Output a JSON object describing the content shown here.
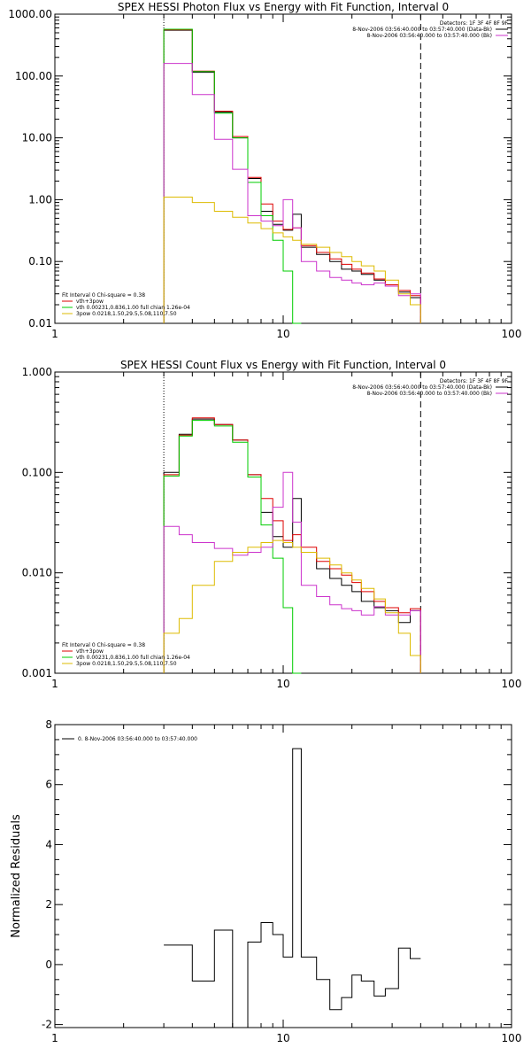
{
  "chart_data": [
    {
      "type": "line",
      "title": "SPEX HESSI Photon Flux vs Energy with Fit Function, Interval 0",
      "xscale": "log",
      "yscale": "log",
      "xlim": [
        1,
        100
      ],
      "ylim": [
        0.01,
        1000
      ],
      "x_ticks": [
        {
          "v": 1,
          "t": "1"
        },
        {
          "v": 10,
          "t": "10"
        },
        {
          "v": 100,
          "t": "100"
        }
      ],
      "y_ticks": [
        {
          "v": 0.01,
          "t": "0.01"
        },
        {
          "v": 0.1,
          "t": "0.10"
        },
        {
          "v": 1,
          "t": "1.00"
        },
        {
          "v": 10,
          "t": "10.00"
        },
        {
          "v": 100,
          "t": "100.00"
        },
        {
          "v": 1000,
          "t": "1000.00"
        }
      ],
      "vlines": [
        {
          "x": 3,
          "style": "dotted"
        },
        {
          "x": 40,
          "style": "dashed"
        }
      ],
      "legend_top": [
        "Detectors: 1F 3F 4F 8F 9F",
        "8-Nov-2006 03:56:40.000 to 03:57:40.000 (Data-Bk)",
        "8-Nov-2006 03:56:40.000 to 03:57:40.000 (Bk)"
      ],
      "legend_top_colors": [
        "",
        "#000000",
        "#cc33cc"
      ],
      "legend_bottom": [
        "Fit Interval 0   Chi-square = 0.38",
        "vth+3pow",
        "vth 0.00231,0.836,1.00  full chian 1.26e-04",
        "3pow 0.0218,1.50,29.5,5.08,110,7.50"
      ],
      "legend_bottom_colors": [
        "",
        "#dd0000",
        "#00cc00",
        "#ddbb00"
      ],
      "edges": [
        3,
        3.5,
        4,
        5,
        6,
        7,
        8,
        9,
        10,
        11,
        12,
        14,
        16,
        18,
        20,
        22,
        25,
        28,
        32,
        36,
        40
      ],
      "series": [
        {
          "color": "#000000",
          "values": [
            550,
            550,
            115,
            26,
            10,
            2.2,
            0.65,
            0.4,
            0.32,
            0.58,
            0.17,
            0.13,
            0.1,
            0.075,
            0.07,
            0.062,
            0.05,
            0.04,
            0.032,
            0.026
          ]
        },
        {
          "color": "#dd0000",
          "values": [
            560,
            560,
            120,
            27,
            10.5,
            2.3,
            0.85,
            0.45,
            0.33,
            0.35,
            0.18,
            0.14,
            0.11,
            0.09,
            0.075,
            0.065,
            0.052,
            0.042,
            0.034,
            0.028
          ]
        },
        {
          "color": "#00cc00",
          "values": [
            570,
            570,
            118,
            25,
            10,
            1.9,
            0.55,
            0.22,
            0.07,
            0.01,
            null,
            null,
            null,
            null,
            null,
            null,
            null,
            null,
            null,
            null
          ]
        },
        {
          "color": "#cc33cc",
          "values": [
            160,
            160,
            50,
            9.5,
            3.1,
            0.55,
            0.45,
            0.38,
            1.0,
            0.35,
            0.1,
            0.07,
            0.055,
            0.05,
            0.045,
            0.042,
            0.045,
            0.04,
            0.028,
            0.03
          ]
        },
        {
          "color": "#ddbb00",
          "values": [
            1.1,
            1.1,
            0.9,
            0.65,
            0.52,
            0.42,
            0.34,
            0.29,
            0.25,
            0.22,
            0.19,
            0.17,
            0.14,
            0.12,
            0.1,
            0.085,
            0.07,
            0.05,
            0.03,
            0.02
          ]
        }
      ]
    },
    {
      "type": "line",
      "title": "SPEX HESSI Count Flux vs Energy with Fit Function, Interval 0",
      "xscale": "log",
      "yscale": "log",
      "xlim": [
        1,
        100
      ],
      "ylim": [
        0.001,
        1
      ],
      "x_ticks": [
        {
          "v": 1,
          "t": "1"
        },
        {
          "v": 10,
          "t": "10"
        },
        {
          "v": 100,
          "t": "100"
        }
      ],
      "y_ticks": [
        {
          "v": 0.001,
          "t": "0.001"
        },
        {
          "v": 0.01,
          "t": "0.010"
        },
        {
          "v": 0.1,
          "t": "0.100"
        },
        {
          "v": 1,
          "t": "1.000"
        }
      ],
      "vlines": [
        {
          "x": 3,
          "style": "dotted"
        },
        {
          "x": 40,
          "style": "dashed"
        }
      ],
      "legend_top": [
        "Detectors: 1F 3F 4F 8F 9F",
        "8-Nov-2006 03:56:40.000 to 03:57:40.000 (Data-Bk)",
        "8-Nov-2006 03:56:40.000 to 03:57:40.000 (Bk)"
      ],
      "legend_top_colors": [
        "",
        "#000000",
        "#cc33cc"
      ],
      "legend_bottom": [
        "Fit Interval 0   Chi-square = 0.38",
        "vth+3pow",
        "vth 0.00231,0.836,1.00  full chian 1.26e-04",
        "3pow 0.0218,1.50,29.5,5.08,110,7.50"
      ],
      "legend_bottom_colors": [
        "",
        "#dd0000",
        "#00cc00",
        "#ddbb00"
      ],
      "edges": [
        3,
        3.5,
        4,
        5,
        6,
        7,
        8,
        9,
        10,
        11,
        12,
        14,
        16,
        18,
        20,
        22,
        25,
        28,
        32,
        36,
        40
      ],
      "series": [
        {
          "color": "#000000",
          "values": [
            0.1,
            0.24,
            0.34,
            0.3,
            0.21,
            0.095,
            0.04,
            0.023,
            0.018,
            0.055,
            0.016,
            0.011,
            0.0088,
            0.0075,
            0.0065,
            0.0052,
            0.0045,
            0.0042,
            0.0032,
            0.0042
          ]
        },
        {
          "color": "#dd0000",
          "values": [
            0.095,
            0.235,
            0.35,
            0.3,
            0.21,
            0.095,
            0.055,
            0.033,
            0.021,
            0.024,
            0.018,
            0.013,
            0.011,
            0.0095,
            0.008,
            0.0065,
            0.0052,
            0.0045,
            0.004,
            0.0044
          ]
        },
        {
          "color": "#00cc00",
          "values": [
            0.092,
            0.23,
            0.33,
            0.29,
            0.2,
            0.09,
            0.03,
            0.014,
            0.0045,
            0.001,
            null,
            null,
            null,
            null,
            null,
            null,
            null,
            null,
            null,
            null
          ]
        },
        {
          "color": "#cc33cc",
          "values": [
            0.029,
            0.024,
            0.02,
            0.0175,
            0.015,
            0.016,
            0.018,
            0.045,
            0.1,
            0.032,
            0.0075,
            0.0058,
            0.0048,
            0.0044,
            0.0042,
            0.0038,
            0.0046,
            0.0038,
            0.0038,
            0.0042
          ]
        },
        {
          "color": "#ddbb00",
          "values": [
            0.0025,
            0.0035,
            0.0075,
            0.013,
            0.016,
            0.018,
            0.02,
            0.021,
            0.02,
            0.018,
            0.016,
            0.014,
            0.012,
            0.01,
            0.0085,
            0.007,
            0.0055,
            0.004,
            0.0025,
            0.0015
          ]
        }
      ]
    },
    {
      "type": "line",
      "title": "",
      "ylabel": "Normalized Residuals",
      "xscale": "log",
      "yscale": "linear",
      "xlim": [
        1,
        100
      ],
      "ylim": [
        -2.1,
        8
      ],
      "x_ticks": [
        {
          "v": 1,
          "t": "1"
        },
        {
          "v": 10,
          "t": "10"
        },
        {
          "v": 100,
          "t": "100"
        }
      ],
      "y_ticks": [
        {
          "v": -2,
          "t": "-2"
        },
        {
          "v": 0,
          "t": "0"
        },
        {
          "v": 2,
          "t": "2"
        },
        {
          "v": 4,
          "t": "4"
        },
        {
          "v": 6,
          "t": "6"
        },
        {
          "v": 8,
          "t": "8"
        }
      ],
      "legend_top": [
        "0. 8-Nov-2006 03:56:40.000 to 03:57:40.000"
      ],
      "legend_top_colors": [
        "#000000"
      ],
      "edges": [
        3,
        4,
        5,
        6,
        7,
        8,
        9,
        10,
        11,
        12,
        14,
        16,
        18,
        20,
        22,
        25,
        28,
        32,
        36,
        40
      ],
      "series": [
        {
          "color": "#000000",
          "values": [
            0.65,
            -0.55,
            1.15,
            -2.1,
            0.75,
            1.4,
            1.0,
            0.25,
            7.2,
            0.25,
            -0.5,
            -1.5,
            -1.1,
            -0.35,
            -0.55,
            -1.05,
            -0.8,
            0.55,
            0.2
          ]
        }
      ]
    }
  ]
}
